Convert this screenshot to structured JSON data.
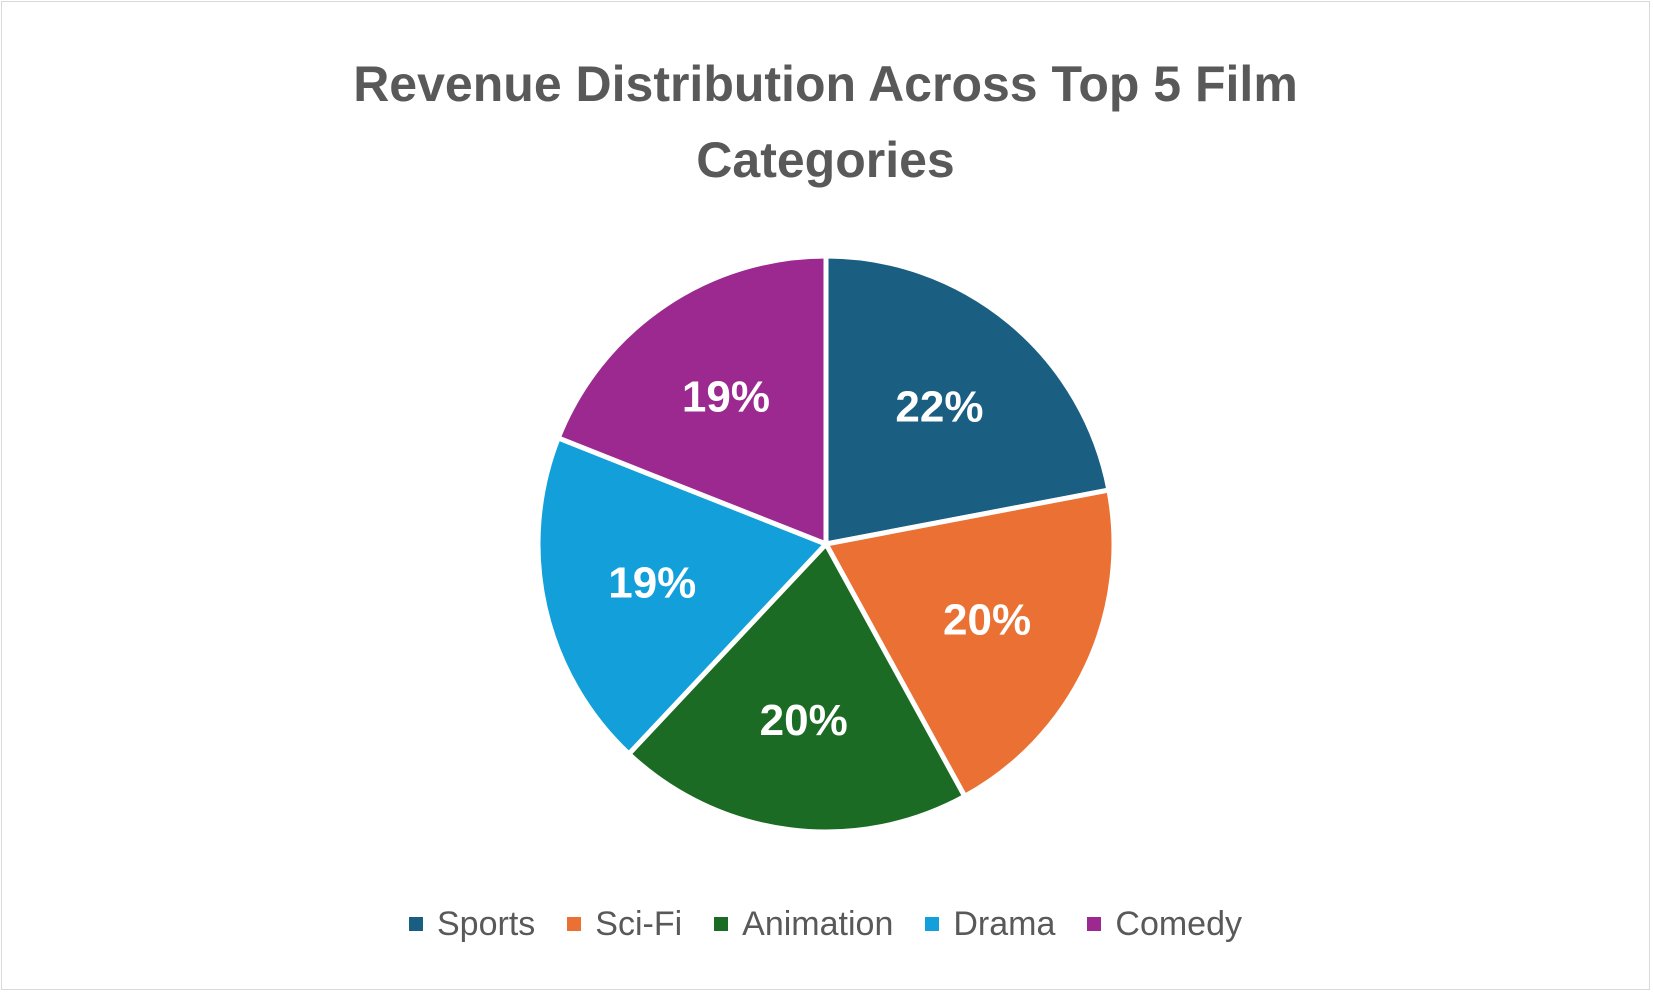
{
  "chart_data": {
    "type": "pie",
    "title_lines": [
      "Revenue Distribution Across Top 5 Film",
      "Categories"
    ],
    "categories": [
      "Sports",
      "Sci-Fi",
      "Animation",
      "Drama",
      "Comedy"
    ],
    "values": [
      22,
      20,
      20,
      19,
      19
    ],
    "data_labels": [
      "22%",
      "20%",
      "20%",
      "19%",
      "19%"
    ],
    "colors": [
      "#1a5e82",
      "#ea7133",
      "#1c6b25",
      "#139fd9",
      "#9c2990"
    ],
    "legend_position": "bottom",
    "start_angle_degrees": 0,
    "direction": "clockwise"
  }
}
